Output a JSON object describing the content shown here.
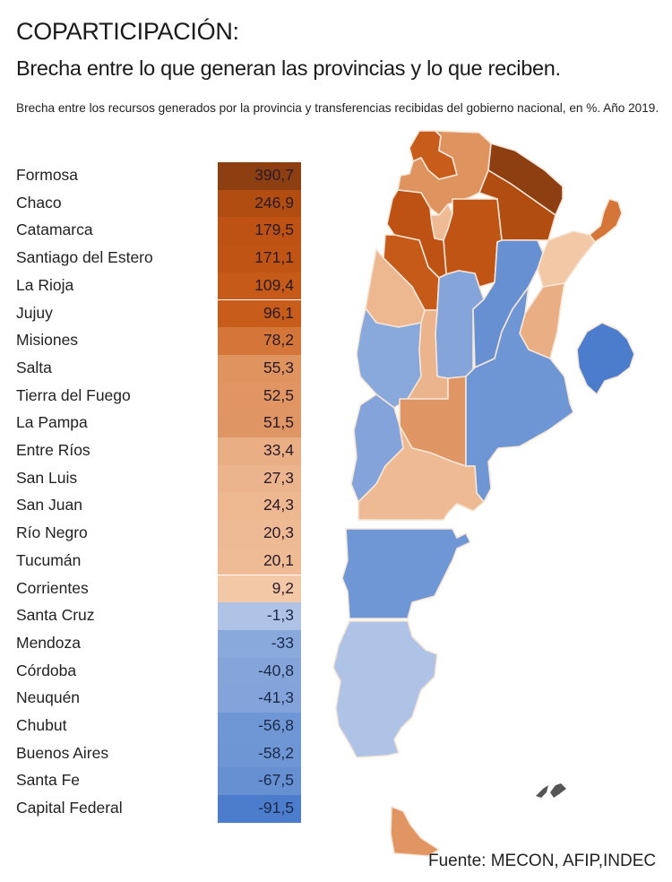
{
  "header": {
    "title": "COPARTICIPACIÓN:",
    "subtitle": "Brecha entre lo que generan las provincias y lo que reciben.",
    "description": "Brecha entre los recursos generados por la provincia y transferencias recibidas del gobierno nacional, en %. Año 2019."
  },
  "table": {
    "rows": [
      {
        "province": "Formosa",
        "value": "390,7",
        "color": "#8e3f12"
      },
      {
        "province": "Chaco",
        "value": "246,9",
        "color": "#b24d12"
      },
      {
        "province": "Catamarca",
        "value": "179,5",
        "color": "#bd5214"
      },
      {
        "province": "Santiago del Estero",
        "value": "171,1",
        "color": "#bf5415"
      },
      {
        "province": "La Rioja",
        "value": "109,4",
        "color": "#c65a18"
      },
      {
        "province": "Jujuy",
        "value": "96,1",
        "color": "#c85c1a"
      },
      {
        "province": "Misiones",
        "value": "78,2",
        "color": "#d4753a"
      },
      {
        "province": "Salta",
        "value": "55,3",
        "color": "#df9460"
      },
      {
        "province": "Tierra del Fuego",
        "value": "52,5",
        "color": "#e09562"
      },
      {
        "province": "La Pampa",
        "value": "51,5",
        "color": "#e09664"
      },
      {
        "province": "Entre Ríos",
        "value": "33,4",
        "color": "#e9ae84"
      },
      {
        "province": "San Luis",
        "value": "27,3",
        "color": "#ecb48c"
      },
      {
        "province": "San Juan",
        "value": "24,3",
        "color": "#edb790"
      },
      {
        "province": "Río Negro",
        "value": "20,3",
        "color": "#eeba94"
      },
      {
        "province": "Tucumán",
        "value": "20,1",
        "color": "#eebb95"
      },
      {
        "province": "Corrientes",
        "value": "9,2",
        "color": "#f2c8a6"
      },
      {
        "province": "Santa Cruz",
        "value": "-1,3",
        "color": "#afc3e6"
      },
      {
        "province": "Mendoza",
        "value": "-33",
        "color": "#89a8dc"
      },
      {
        "province": "Córdoba",
        "value": "-40,8",
        "color": "#84a4da"
      },
      {
        "province": "Neuquén",
        "value": "-41,3",
        "color": "#83a3da"
      },
      {
        "province": "Chubut",
        "value": "-56,8",
        "color": "#7097d5"
      },
      {
        "province": "Buenos Aires",
        "value": "-58,2",
        "color": "#6f96d4"
      },
      {
        "province": "Santa Fe",
        "value": "-67,5",
        "color": "#6690d2"
      },
      {
        "province": "Capital Federal",
        "value": "-91,5",
        "color": "#4c7ccc"
      }
    ]
  },
  "source": "Fuente: MECON, AFIP,INDEC",
  "chart_data": {
    "type": "heatmap",
    "title": "COPARTICIPACIÓN: Brecha entre lo que generan las provincias y lo que reciben.",
    "subtitle": "Brecha entre los recursos generados por la provincia y transferencias recibidas del gobierno nacional, en %. Año 2019.",
    "categories": [
      "Formosa",
      "Chaco",
      "Catamarca",
      "Santiago del Estero",
      "La Rioja",
      "Jujuy",
      "Misiones",
      "Salta",
      "Tierra del Fuego",
      "La Pampa",
      "Entre Ríos",
      "San Luis",
      "San Juan",
      "Río Negro",
      "Tucumán",
      "Corrientes",
      "Santa Cruz",
      "Mendoza",
      "Córdoba",
      "Neuquén",
      "Chubut",
      "Buenos Aires",
      "Santa Fe",
      "Capital Federal"
    ],
    "values": [
      390.7,
      246.9,
      179.5,
      171.1,
      109.4,
      96.1,
      78.2,
      55.3,
      52.5,
      51.5,
      33.4,
      27.3,
      24.3,
      20.3,
      20.1,
      9.2,
      -1.3,
      -33,
      -40.8,
      -41.3,
      -56.8,
      -58.2,
      -67.5,
      -91.5
    ],
    "unit": "%",
    "year": "2019",
    "color_scale": {
      "positive": "#8e3f12",
      "neutral": "#f2c8a6",
      "negative": "#4c7ccc"
    },
    "source": "Fuente: MECON, AFIP,INDEC"
  },
  "map": {
    "colors": {
      "jujuy": "#c85c1a",
      "salta": "#df9460",
      "formosa": "#8e3f12",
      "chaco": "#b24d12",
      "misiones": "#d4753a",
      "tucuman": "#eebb95",
      "santiago": "#bf5415",
      "catamarca": "#bd5214",
      "larioja": "#c65a18",
      "corrientes": "#f2c8a6",
      "santafe": "#6690d2",
      "sanjuan": "#edb790",
      "cordoba": "#84a4da",
      "sanluis": "#ecb48c",
      "entrerios": "#e9ae84",
      "mendoza": "#89a8dc",
      "lapampa": "#e09664",
      "buenosaires": "#6f96d4",
      "capital": "#4c7ccc",
      "neuquen": "#83a3da",
      "rionegro": "#eeba94",
      "chubut": "#7097d5",
      "santacruz": "#afc3e6",
      "tierradelfuego": "#e09562",
      "malvinas": "#555555"
    }
  }
}
